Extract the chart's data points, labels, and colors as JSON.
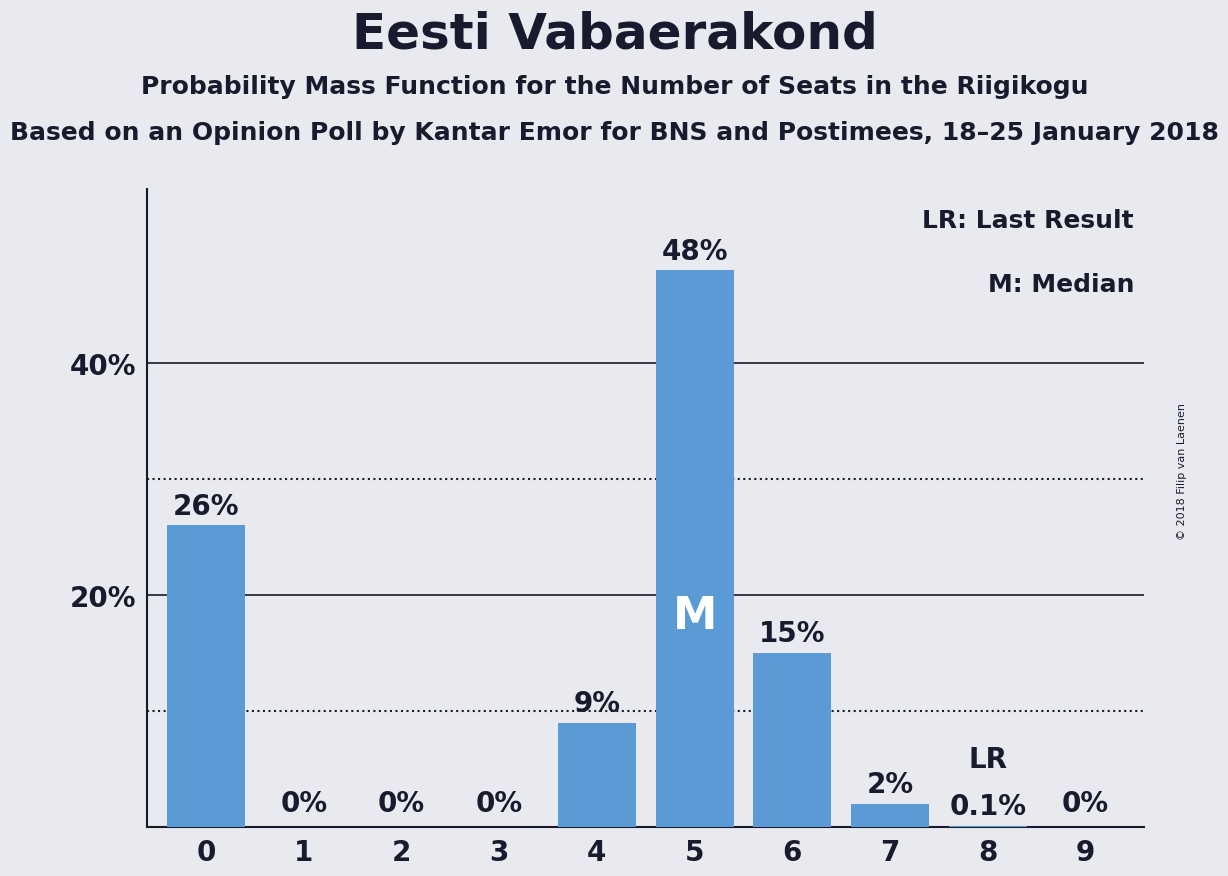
{
  "title": "Eesti Vabaerakond",
  "subtitle1": "Probability Mass Function for the Number of Seats in the Riigikogu",
  "subtitle2": "Based on an Opinion Poll by Kantar Emor for BNS and Postimees, 18–25 January 2018",
  "copyright": "© 2018 Filip van Laenen",
  "categories": [
    0,
    1,
    2,
    3,
    4,
    5,
    6,
    7,
    8,
    9
  ],
  "values": [
    26,
    0,
    0,
    0,
    9,
    48,
    15,
    2,
    0.1,
    0
  ],
  "bar_labels": [
    "26%",
    "0%",
    "0%",
    "0%",
    "9%",
    "48%",
    "15%",
    "2%",
    "0.1%",
    "0%"
  ],
  "bar_color": "#5b9bd5",
  "background_color": "#e9e9f0",
  "text_color": "#1a1a2e",
  "median_bar_index": 5,
  "lr_bar_index": 8,
  "median_label": "M",
  "lr_label": "LR",
  "dotted_lines": [
    10,
    30
  ],
  "solid_lines": [
    20,
    40
  ],
  "ylim": [
    0,
    55
  ],
  "legend_lr": "LR: Last Result",
  "legend_m": "M: Median",
  "title_fontsize": 36,
  "subtitle_fontsize": 18,
  "bar_label_fontsize": 20,
  "axis_label_fontsize": 20,
  "legend_fontsize": 18,
  "copyright_fontsize": 8
}
